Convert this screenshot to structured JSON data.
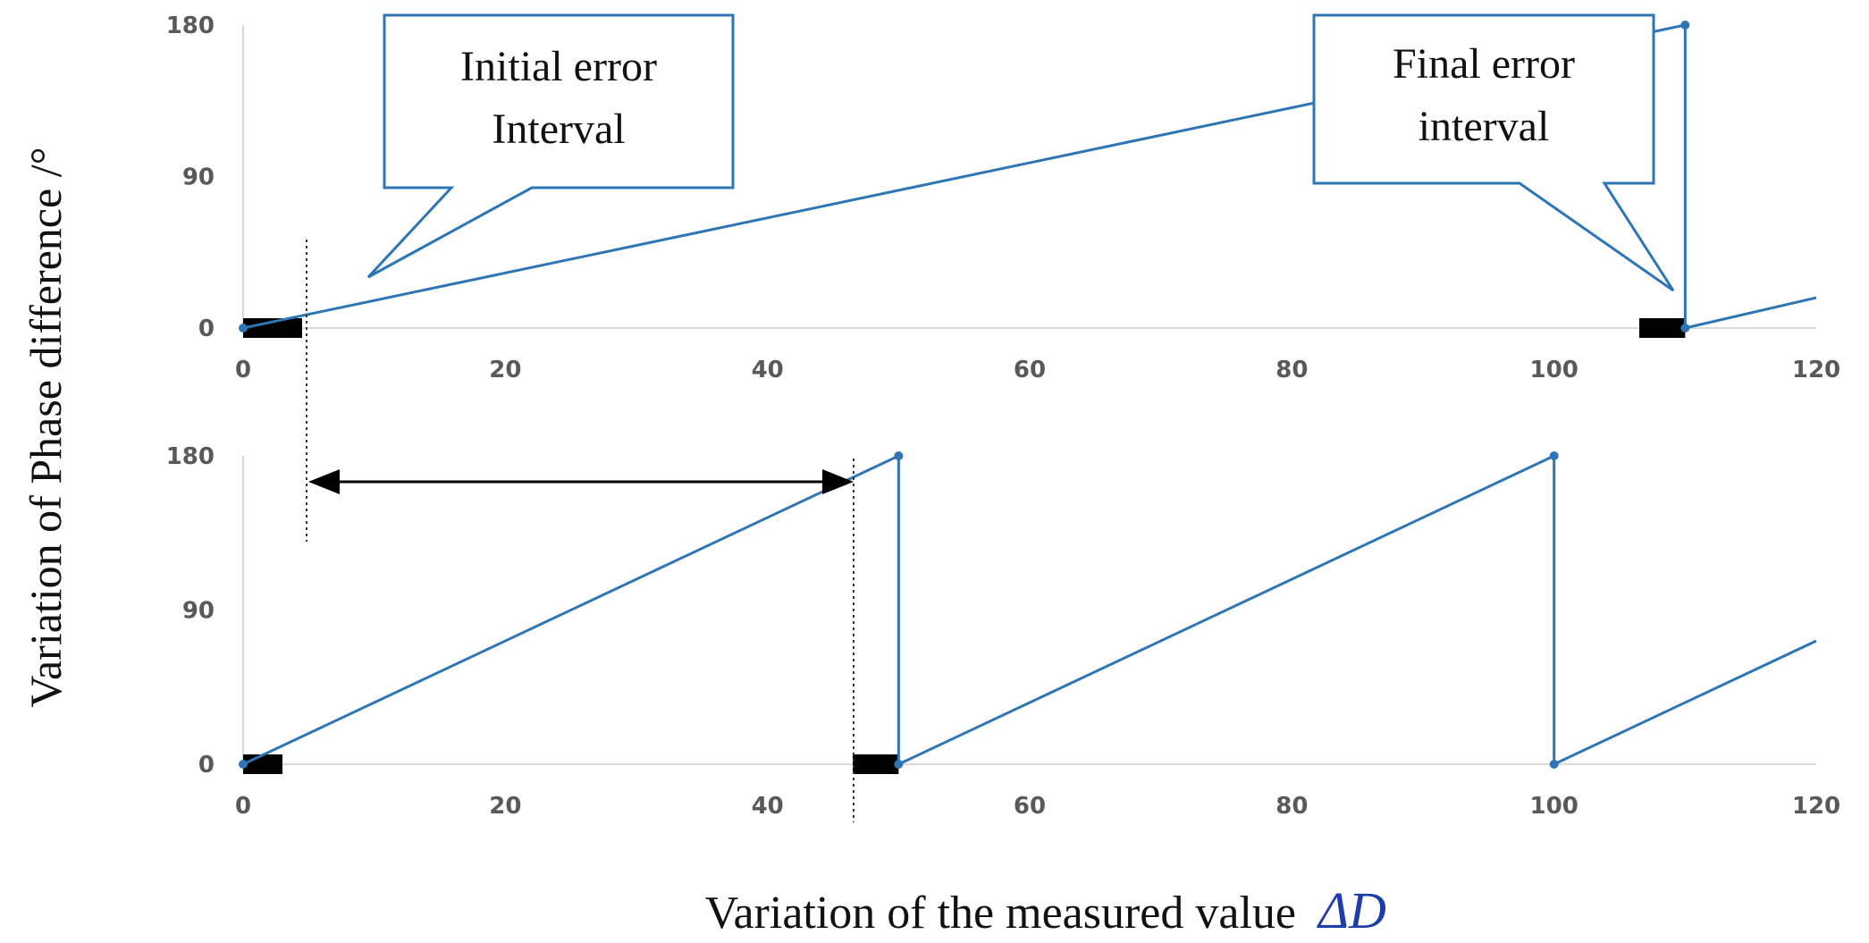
{
  "chart_data": [
    {
      "type": "line",
      "panel": "top",
      "xlim": [
        0,
        120
      ],
      "ylim": [
        0,
        180
      ],
      "xticks": [
        "0",
        "20",
        "40",
        "60",
        "80",
        "100",
        "120"
      ],
      "yticks": [
        "0",
        "90",
        "180"
      ],
      "series": [
        {
          "points": [
            [
              0,
              0
            ],
            [
              110,
              180
            ],
            [
              110,
              0
            ],
            [
              120,
              18
            ]
          ]
        }
      ],
      "error_intervals": [
        [
          0,
          4.5
        ],
        [
          106.5,
          110
        ]
      ],
      "color": "#2e75b6"
    },
    {
      "type": "line",
      "panel": "bottom",
      "xlim": [
        0,
        120
      ],
      "ylim": [
        0,
        180
      ],
      "xticks": [
        "0",
        "20",
        "40",
        "60",
        "80",
        "100",
        "120"
      ],
      "yticks": [
        "0",
        "90",
        "180"
      ],
      "series": [
        {
          "points": [
            [
              0,
              0
            ],
            [
              50,
              180
            ],
            [
              50,
              0
            ],
            [
              100,
              180
            ],
            [
              100,
              0
            ],
            [
              120,
              72
            ]
          ]
        }
      ],
      "error_intervals": [
        [
          0,
          3
        ],
        [
          46.5,
          50
        ]
      ],
      "color": "#2e75b6"
    }
  ],
  "labels": {
    "ylabel": "Variation of Phase difference  /°",
    "xlabel": "Variation of the measured value",
    "xlabel_symbol": "ΔD"
  },
  "callouts": {
    "initial": {
      "line1": "Initial error",
      "line2": "Interval"
    },
    "final": {
      "line1": "Final error",
      "line2": "interval"
    }
  },
  "colors": {
    "series": "#2e75b6",
    "axis": "#d9d9d9",
    "marker": "#000000"
  }
}
